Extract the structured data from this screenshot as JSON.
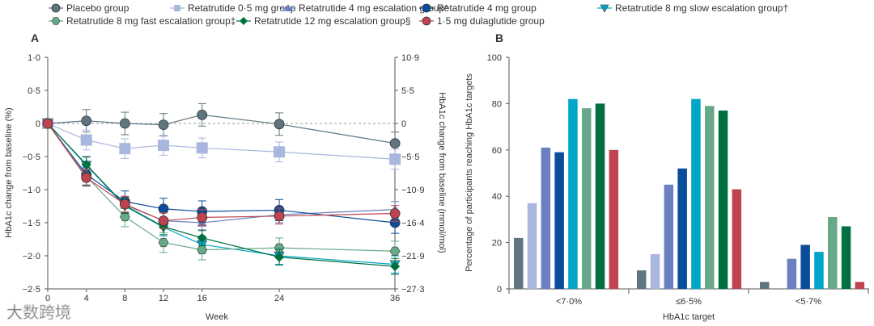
{
  "legend": [
    {
      "name": "Placebo group",
      "color": "#5f7680",
      "marker": "circle"
    },
    {
      "name": "Retatrutide 0·5 mg group",
      "color": "#a9b6dd",
      "marker": "square"
    },
    {
      "name": "Retatrutide 4 mg escalation group*",
      "color": "#6a80c0",
      "marker": "triangle-up"
    },
    {
      "name": "Retatrutide 4 mg group",
      "color": "#0a4d9a",
      "marker": "circle"
    },
    {
      "name": "Retatrutide 8 mg slow escalation group†",
      "color": "#00a5c8",
      "marker": "triangle-down"
    },
    {
      "name": "Retatrutide 8 mg fast escalation group‡",
      "color": "#66a888",
      "marker": "hexagon"
    },
    {
      "name": "Retatrutide 12 mg escalation group§",
      "color": "#007040",
      "marker": "diamond"
    },
    {
      "name": "1·5 mg dulaglutide  group",
      "color": "#c04450",
      "marker": "circle"
    }
  ],
  "watermark": "大数跨境",
  "chart_data": [
    {
      "panel": "A",
      "type": "line",
      "xlabel": "Week",
      "ylabel": "HbA1c change from baseline (%)",
      "y2label": "HbA1c change from baseline (mmol/mol)",
      "x": [
        0,
        4,
        8,
        12,
        16,
        24,
        36
      ],
      "xticks": [
        "0",
        "4",
        "8",
        "12",
        "16",
        "24",
        "36"
      ],
      "ylim": [
        -2.5,
        1.0
      ],
      "yticks": [
        1.0,
        0.5,
        0,
        -0.5,
        -1.0,
        -1.5,
        -2.0,
        -2.5
      ],
      "yticklabels": [
        "1·0",
        "0·5",
        "0",
        "−0·5",
        "−1·0",
        "−1·5",
        "−2·0",
        "−2·5"
      ],
      "y2ticklabels": [
        "10·9",
        "5·5",
        "0",
        "−5·5",
        "−10·9",
        "−16·4",
        "−21·9",
        "−27·3"
      ],
      "reference_line": 0,
      "series": [
        {
          "name": "Placebo group",
          "values": [
            0,
            0.04,
            0,
            -0.02,
            0.13,
            -0.01,
            -0.3
          ],
          "err": 0.17
        },
        {
          "name": "Retatrutide 0·5 mg group",
          "values": [
            0,
            -0.25,
            -0.38,
            -0.33,
            -0.37,
            -0.43,
            -0.54
          ],
          "err": 0.15
        },
        {
          "name": "Retatrutide 4 mg escalation group*",
          "values": [
            0,
            -0.63,
            -1.23,
            -1.47,
            -1.5,
            -1.38,
            -1.3
          ],
          "err": 0.12
        },
        {
          "name": "Retatrutide 4 mg group",
          "values": [
            0,
            -0.77,
            -1.18,
            -1.29,
            -1.33,
            -1.31,
            -1.5
          ],
          "err": 0.16
        },
        {
          "name": "Retatrutide 8 mg slow escalation group†",
          "values": [
            0,
            -0.63,
            -1.25,
            -1.57,
            -1.83,
            -2.0,
            -2.13
          ],
          "err": 0.13
        },
        {
          "name": "Retatrutide 8 mg fast escalation group‡",
          "values": [
            0,
            -0.8,
            -1.41,
            -1.8,
            -1.91,
            -1.88,
            -1.93
          ],
          "err": 0.15
        },
        {
          "name": "Retatrutide 12 mg escalation group§",
          "values": [
            0,
            -0.62,
            -1.24,
            -1.56,
            -1.73,
            -2.02,
            -2.16
          ],
          "err": 0.12
        },
        {
          "name": "1·5 mg dulaglutide  group",
          "values": [
            0,
            -0.82,
            -1.22,
            -1.47,
            -1.42,
            -1.4,
            -1.36
          ],
          "err": 0.12
        }
      ]
    },
    {
      "panel": "B",
      "type": "bar",
      "xlabel": "HbA1c target",
      "ylabel": "Percentage of participants reaching HbA1c targets",
      "categories": [
        "<7·0%",
        "≤6·5%",
        "<5·7%"
      ],
      "ylim": [
        0,
        100
      ],
      "yticks": [
        0,
        20,
        40,
        60,
        80,
        100
      ],
      "series": [
        {
          "name": "Placebo group",
          "values": [
            22,
            8,
            3
          ]
        },
        {
          "name": "Retatrutide 0·5 mg group",
          "values": [
            37,
            15,
            0
          ]
        },
        {
          "name": "Retatrutide 4 mg escalation group*",
          "values": [
            61,
            45,
            13
          ]
        },
        {
          "name": "Retatrutide 4 mg group",
          "values": [
            59,
            52,
            19
          ]
        },
        {
          "name": "Retatrutide 8 mg slow escalation group†",
          "values": [
            82,
            82,
            16
          ]
        },
        {
          "name": "Retatrutide 8 mg fast escalation group‡",
          "values": [
            78,
            79,
            31
          ]
        },
        {
          "name": "Retatrutide 12 mg escalation group§",
          "values": [
            80,
            77,
            27
          ]
        },
        {
          "name": "1·5 mg dulaglutide  group",
          "values": [
            60,
            43,
            3
          ]
        }
      ]
    }
  ]
}
